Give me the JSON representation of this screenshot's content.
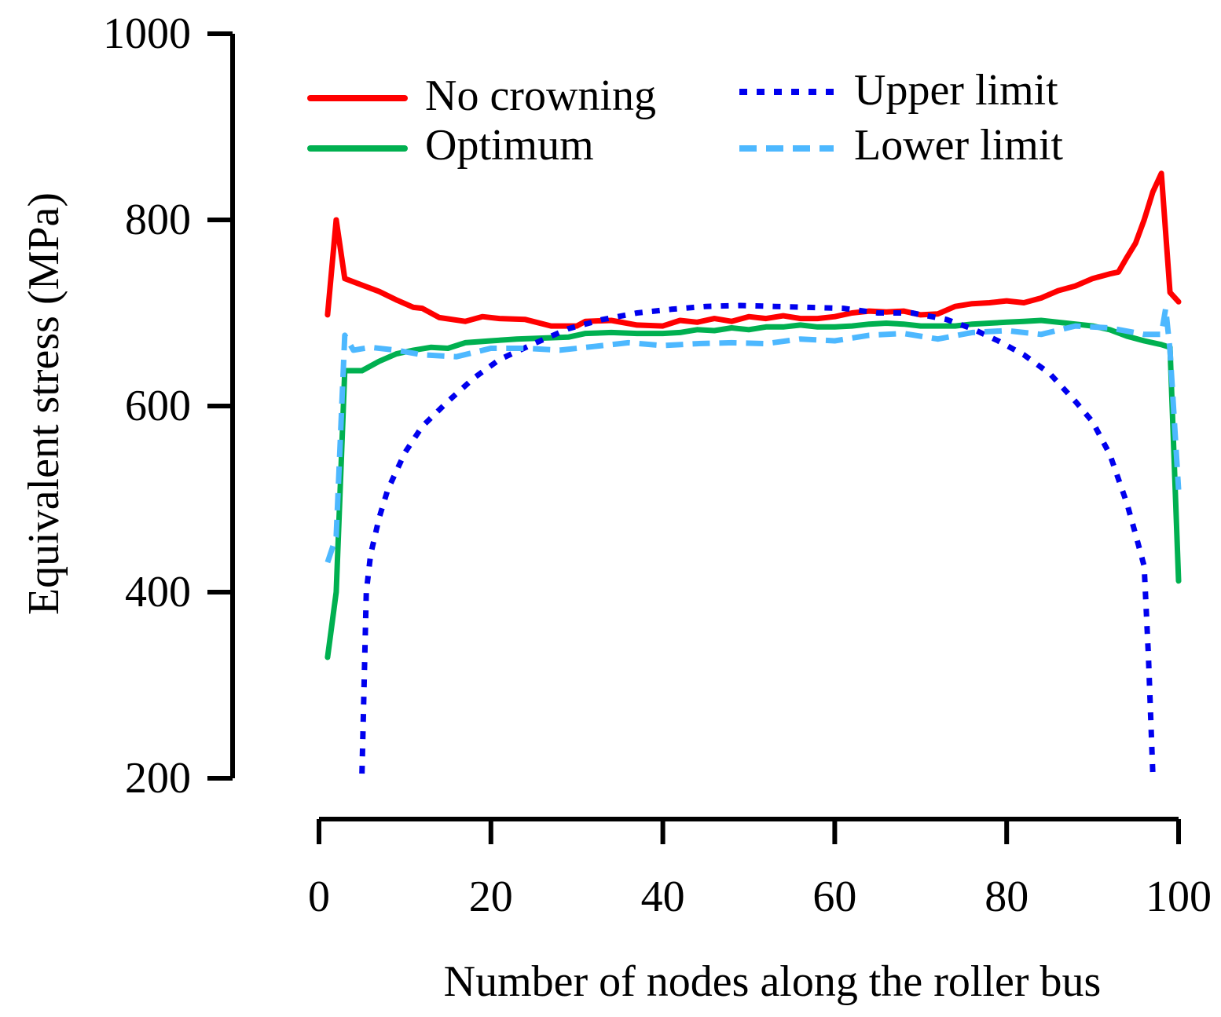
{
  "chart_data": {
    "type": "line",
    "title": "",
    "xlabel": "Number of nodes along the roller bus",
    "ylabel": "Equivalent stress (MPa)",
    "xlim": [
      0,
      100
    ],
    "ylim": [
      200,
      1000
    ],
    "xticks": [
      "0",
      "20",
      "40",
      "60",
      "80",
      "100"
    ],
    "xtick_values": [
      0,
      20,
      40,
      60,
      80,
      100
    ],
    "yticks": [
      "200",
      "400",
      "600",
      "800",
      "1000"
    ],
    "ytick_values": [
      200,
      400,
      600,
      800,
      1000
    ],
    "grid": false,
    "legend_position": "top",
    "series": [
      {
        "name": "No crowning",
        "color": "#ff0000",
        "style": "solid",
        "x": [
          1,
          2,
          3,
          5,
          7,
          9,
          11,
          12,
          14,
          17,
          19,
          21,
          24,
          27,
          30,
          31,
          34,
          37,
          40,
          42,
          44,
          46,
          48,
          50,
          52,
          54,
          56,
          58,
          60,
          62,
          64,
          66,
          68,
          70,
          72,
          74,
          76,
          78,
          80,
          82,
          84,
          86,
          88,
          90,
          92,
          93,
          94,
          95,
          96,
          97,
          98,
          99,
          100
        ],
        "y": [
          698,
          800,
          737,
          730,
          723,
          714,
          706,
          705,
          695,
          691,
          696,
          694,
          693,
          686,
          686,
          691,
          692,
          687,
          686,
          692,
          690,
          694,
          691,
          696,
          694,
          697,
          694,
          694,
          696,
          700,
          702,
          701,
          702,
          698,
          699,
          707,
          710,
          711,
          713,
          711,
          716,
          724,
          729,
          737,
          742,
          744,
          760,
          775,
          800,
          830,
          850,
          722,
          712
        ]
      },
      {
        "name": "Optimum",
        "color": "#00b050",
        "style": "solid",
        "x": [
          1,
          2,
          3,
          5,
          7,
          9,
          11,
          13,
          15,
          17,
          20,
          23,
          26,
          29,
          31,
          34,
          37,
          40,
          42,
          44,
          46,
          48,
          50,
          52,
          54,
          56,
          58,
          60,
          62,
          64,
          66,
          68,
          70,
          72,
          74,
          76,
          78,
          80,
          82,
          84,
          86,
          88,
          90,
          92,
          94,
          96,
          98,
          99,
          100
        ],
        "y": [
          330,
          400,
          638,
          638,
          648,
          656,
          660,
          663,
          662,
          668,
          670,
          672,
          673,
          674,
          678,
          679,
          678,
          678,
          679,
          682,
          681,
          684,
          682,
          685,
          685,
          687,
          685,
          685,
          686,
          688,
          689,
          688,
          686,
          686,
          686,
          688,
          689,
          690,
          691,
          692,
          690,
          688,
          686,
          682,
          675,
          670,
          666,
          663,
          412
        ]
      },
      {
        "name": "Upper limit",
        "color": "#0000ee",
        "style": "dotted",
        "x": [
          5,
          5.5,
          6,
          7,
          8,
          10,
          12,
          15,
          18,
          21,
          25,
          29,
          33,
          37,
          41,
          45,
          49,
          53,
          57,
          61,
          65,
          69,
          73,
          76,
          79,
          82,
          85,
          88,
          90,
          92,
          94,
          95,
          96,
          96.5,
          97
        ],
        "y": [
          205,
          400,
          440,
          480,
          510,
          550,
          578,
          605,
          630,
          650,
          667,
          683,
          693,
          700,
          704,
          707,
          708,
          707,
          706,
          705,
          700,
          700,
          693,
          683,
          670,
          655,
          635,
          605,
          583,
          548,
          495,
          462,
          428,
          330,
          205
        ]
      },
      {
        "name": "Lower limit",
        "color": "#4db8ff",
        "style": "dashed",
        "x": [
          1,
          2,
          3,
          4,
          6,
          9,
          12,
          16,
          20,
          24,
          28,
          32,
          36,
          40,
          44,
          48,
          52,
          56,
          60,
          64,
          68,
          72,
          76,
          80,
          84,
          88,
          92,
          96,
          98,
          98.5,
          99,
          100
        ],
        "y": [
          432,
          460,
          676,
          660,
          663,
          660,
          655,
          653,
          662,
          662,
          660,
          664,
          668,
          665,
          667,
          668,
          667,
          672,
          670,
          676,
          678,
          672,
          679,
          681,
          677,
          686,
          684,
          677,
          677,
          705,
          660,
          510
        ]
      }
    ]
  }
}
